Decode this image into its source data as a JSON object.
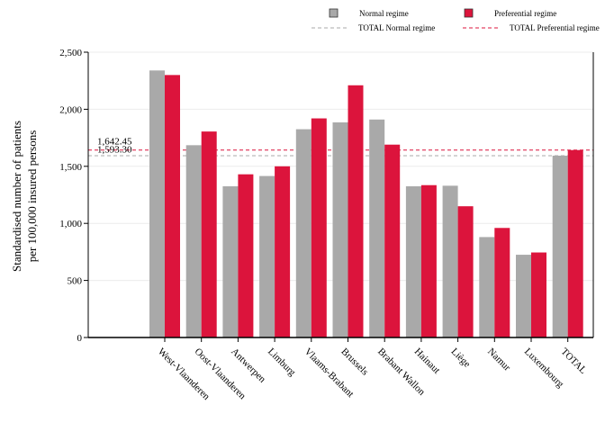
{
  "chart_data": {
    "type": "bar",
    "title": "",
    "xlabel": "",
    "ylabel_lines": [
      "Standardised number of patients",
      "per 100,000 insured persons"
    ],
    "ylim": [
      0,
      2500
    ],
    "yticks": [
      0,
      500,
      1000,
      1500,
      2000,
      2500
    ],
    "ytick_labels": [
      "0",
      "500",
      "1,000",
      "1,500",
      "2,000",
      "2,500"
    ],
    "grid": true,
    "legend_position": "top",
    "categories": [
      "West-Vlaanderen",
      "Oost-Vlaanderen",
      "Antwerpen",
      "Limburg",
      "Vlaams-Brabant",
      "Brussels",
      "Brabant Wallon",
      "Hainaut",
      "Liège",
      "Namur",
      "Luxembourg",
      "TOTAL"
    ],
    "series": [
      {
        "name": "Normal regime",
        "color": "#a9a9a9",
        "values": [
          2340,
          1685,
          1325,
          1415,
          1825,
          1885,
          1910,
          1325,
          1330,
          880,
          725,
          1593.3
        ]
      },
      {
        "name": "Preferential regime",
        "color": "#dc143c",
        "values": [
          2300,
          1805,
          1430,
          1500,
          1920,
          2210,
          1690,
          1335,
          1150,
          960,
          745,
          1642.45
        ]
      }
    ],
    "reference_lines": [
      {
        "name": "TOTAL Normal regime",
        "value": 1593.3,
        "label": "1,593.30",
        "color": "#a9a9a9",
        "style": "dashed"
      },
      {
        "name": "TOTAL Preferential regime",
        "value": 1642.45,
        "label": "1,642.45",
        "color": "#dc143c",
        "style": "dashed"
      }
    ]
  }
}
